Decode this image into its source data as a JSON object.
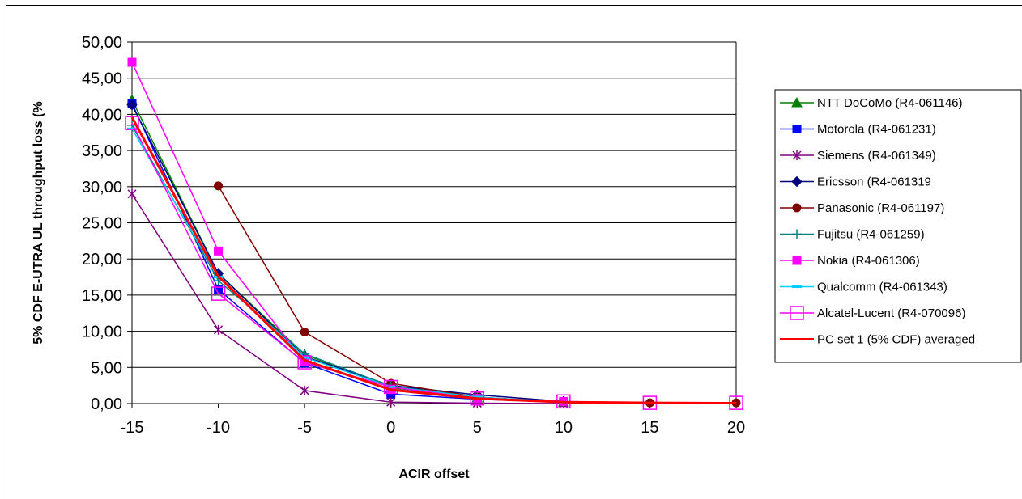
{
  "chart_data": {
    "type": "line",
    "title": "",
    "xlabel": "ACIR offset",
    "ylabel": "5% CDF E-UTRA UL throughput loss (%",
    "x": [
      -15,
      -10,
      -5,
      0,
      5,
      10,
      15,
      20
    ],
    "x_tick_labels": [
      "-15",
      "-10",
      "-5",
      "0",
      "5",
      "10",
      "15",
      "20"
    ],
    "ylim": [
      0,
      50
    ],
    "y_ticks": [
      0,
      5,
      10,
      15,
      20,
      25,
      30,
      35,
      40,
      45,
      50
    ],
    "y_tick_labels": [
      "0,00",
      "5,00",
      "10,00",
      "15,00",
      "20,00",
      "25,00",
      "30,00",
      "35,00",
      "40,00",
      "45,00",
      "50,00"
    ],
    "grid": "horizontal",
    "legend_position": "right",
    "series": [
      {
        "name": "NTT DoCoMo (R4-061146)",
        "color": "#008000",
        "marker": "triangle",
        "x": [
          -15,
          -10,
          -5,
          0,
          5,
          10
        ],
        "values": [
          42.0,
          18.0,
          6.8,
          2.2,
          0.8,
          0.2
        ]
      },
      {
        "name": "Motorola (R4-061231)",
        "color": "#0000FF",
        "marker": "square",
        "x": [
          -15,
          -10,
          -5,
          0,
          5,
          10
        ],
        "values": [
          41.5,
          15.8,
          5.6,
          1.3,
          0.6,
          0.2
        ]
      },
      {
        "name": "Siemens (R4-061349)",
        "color": "#800080",
        "marker": "star",
        "x": [
          -15,
          -10,
          -5,
          0,
          5,
          10
        ],
        "values": [
          29.0,
          10.2,
          1.8,
          0.2,
          0.05,
          0.0
        ]
      },
      {
        "name": "Ericsson (R4-061319",
        "color": "#000080",
        "marker": "diamond",
        "x": [
          -15,
          -10,
          -5,
          0,
          5,
          10
        ],
        "values": [
          41.3,
          18.0,
          6.5,
          2.5,
          1.2,
          0.3
        ]
      },
      {
        "name": "Panasonic (R4-061197)",
        "color": "#800000",
        "marker": "circle",
        "x": [
          -10,
          -5,
          0,
          5,
          10,
          15,
          20
        ],
        "values": [
          30.1,
          9.9,
          2.8,
          0.9,
          0.2,
          0.1,
          0.1
        ]
      },
      {
        "name": "Fujitsu (R4-061259)",
        "color": "#008080",
        "marker": "plus",
        "x": [
          -15,
          -10,
          -5,
          0,
          5,
          10
        ],
        "values": [
          38.5,
          17.0,
          6.9,
          2.4,
          0.9,
          0.2
        ]
      },
      {
        "name": "Nokia (R4-061306)",
        "color": "#FF00FF",
        "marker": "square",
        "x": [
          -15,
          -10,
          -5,
          0,
          5,
          10
        ],
        "values": [
          47.2,
          21.1,
          5.8,
          2.0,
          0.7,
          0.3
        ]
      },
      {
        "name": "Qualcomm (R4-061343)",
        "color": "#00CCFF",
        "marker": "dash",
        "x": [
          -15,
          -10,
          -5,
          0,
          5,
          10
        ],
        "values": [
          38.0,
          17.5,
          6.4,
          2.3,
          0.9,
          0.2
        ]
      },
      {
        "name": "Alcatel-Lucent (R4-070096)",
        "color": "#FF00FF",
        "marker": "square-open",
        "x": [
          -15,
          -10,
          -5,
          0,
          5,
          10,
          15,
          20
        ],
        "values": [
          38.8,
          15.2,
          5.7,
          2.3,
          0.7,
          0.3,
          0.1,
          0.1
        ]
      },
      {
        "name": "PC set 1 (5% CDF) averaged",
        "color": "#FF0000",
        "marker": "none",
        "x": [
          -15,
          -10,
          -5,
          0,
          5,
          10,
          15,
          20
        ],
        "values": [
          39.6,
          17.6,
          6.0,
          1.9,
          0.7,
          0.2,
          0.1,
          0.05
        ]
      }
    ]
  }
}
